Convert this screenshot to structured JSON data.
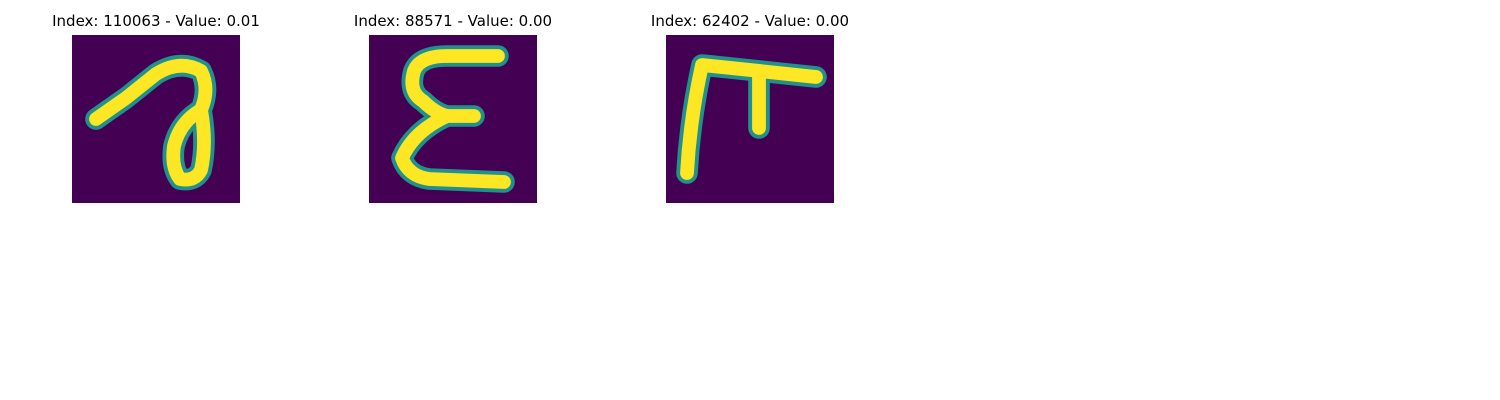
{
  "figure": {
    "panels": [
      {
        "title": "Index: 110063 - Value: 0.01",
        "glyph": "handwritten-a-like-glyph"
      },
      {
        "title": "Index: 88571 - Value: 0.00",
        "glyph": "handwritten-epsilon-glyph"
      },
      {
        "title": "Index: 62402 - Value: 0.00",
        "glyph": "handwritten-gamma-like-glyph"
      }
    ],
    "colors": {
      "background": "#440154",
      "stroke": "#fde725",
      "edge": "#21918c"
    }
  }
}
